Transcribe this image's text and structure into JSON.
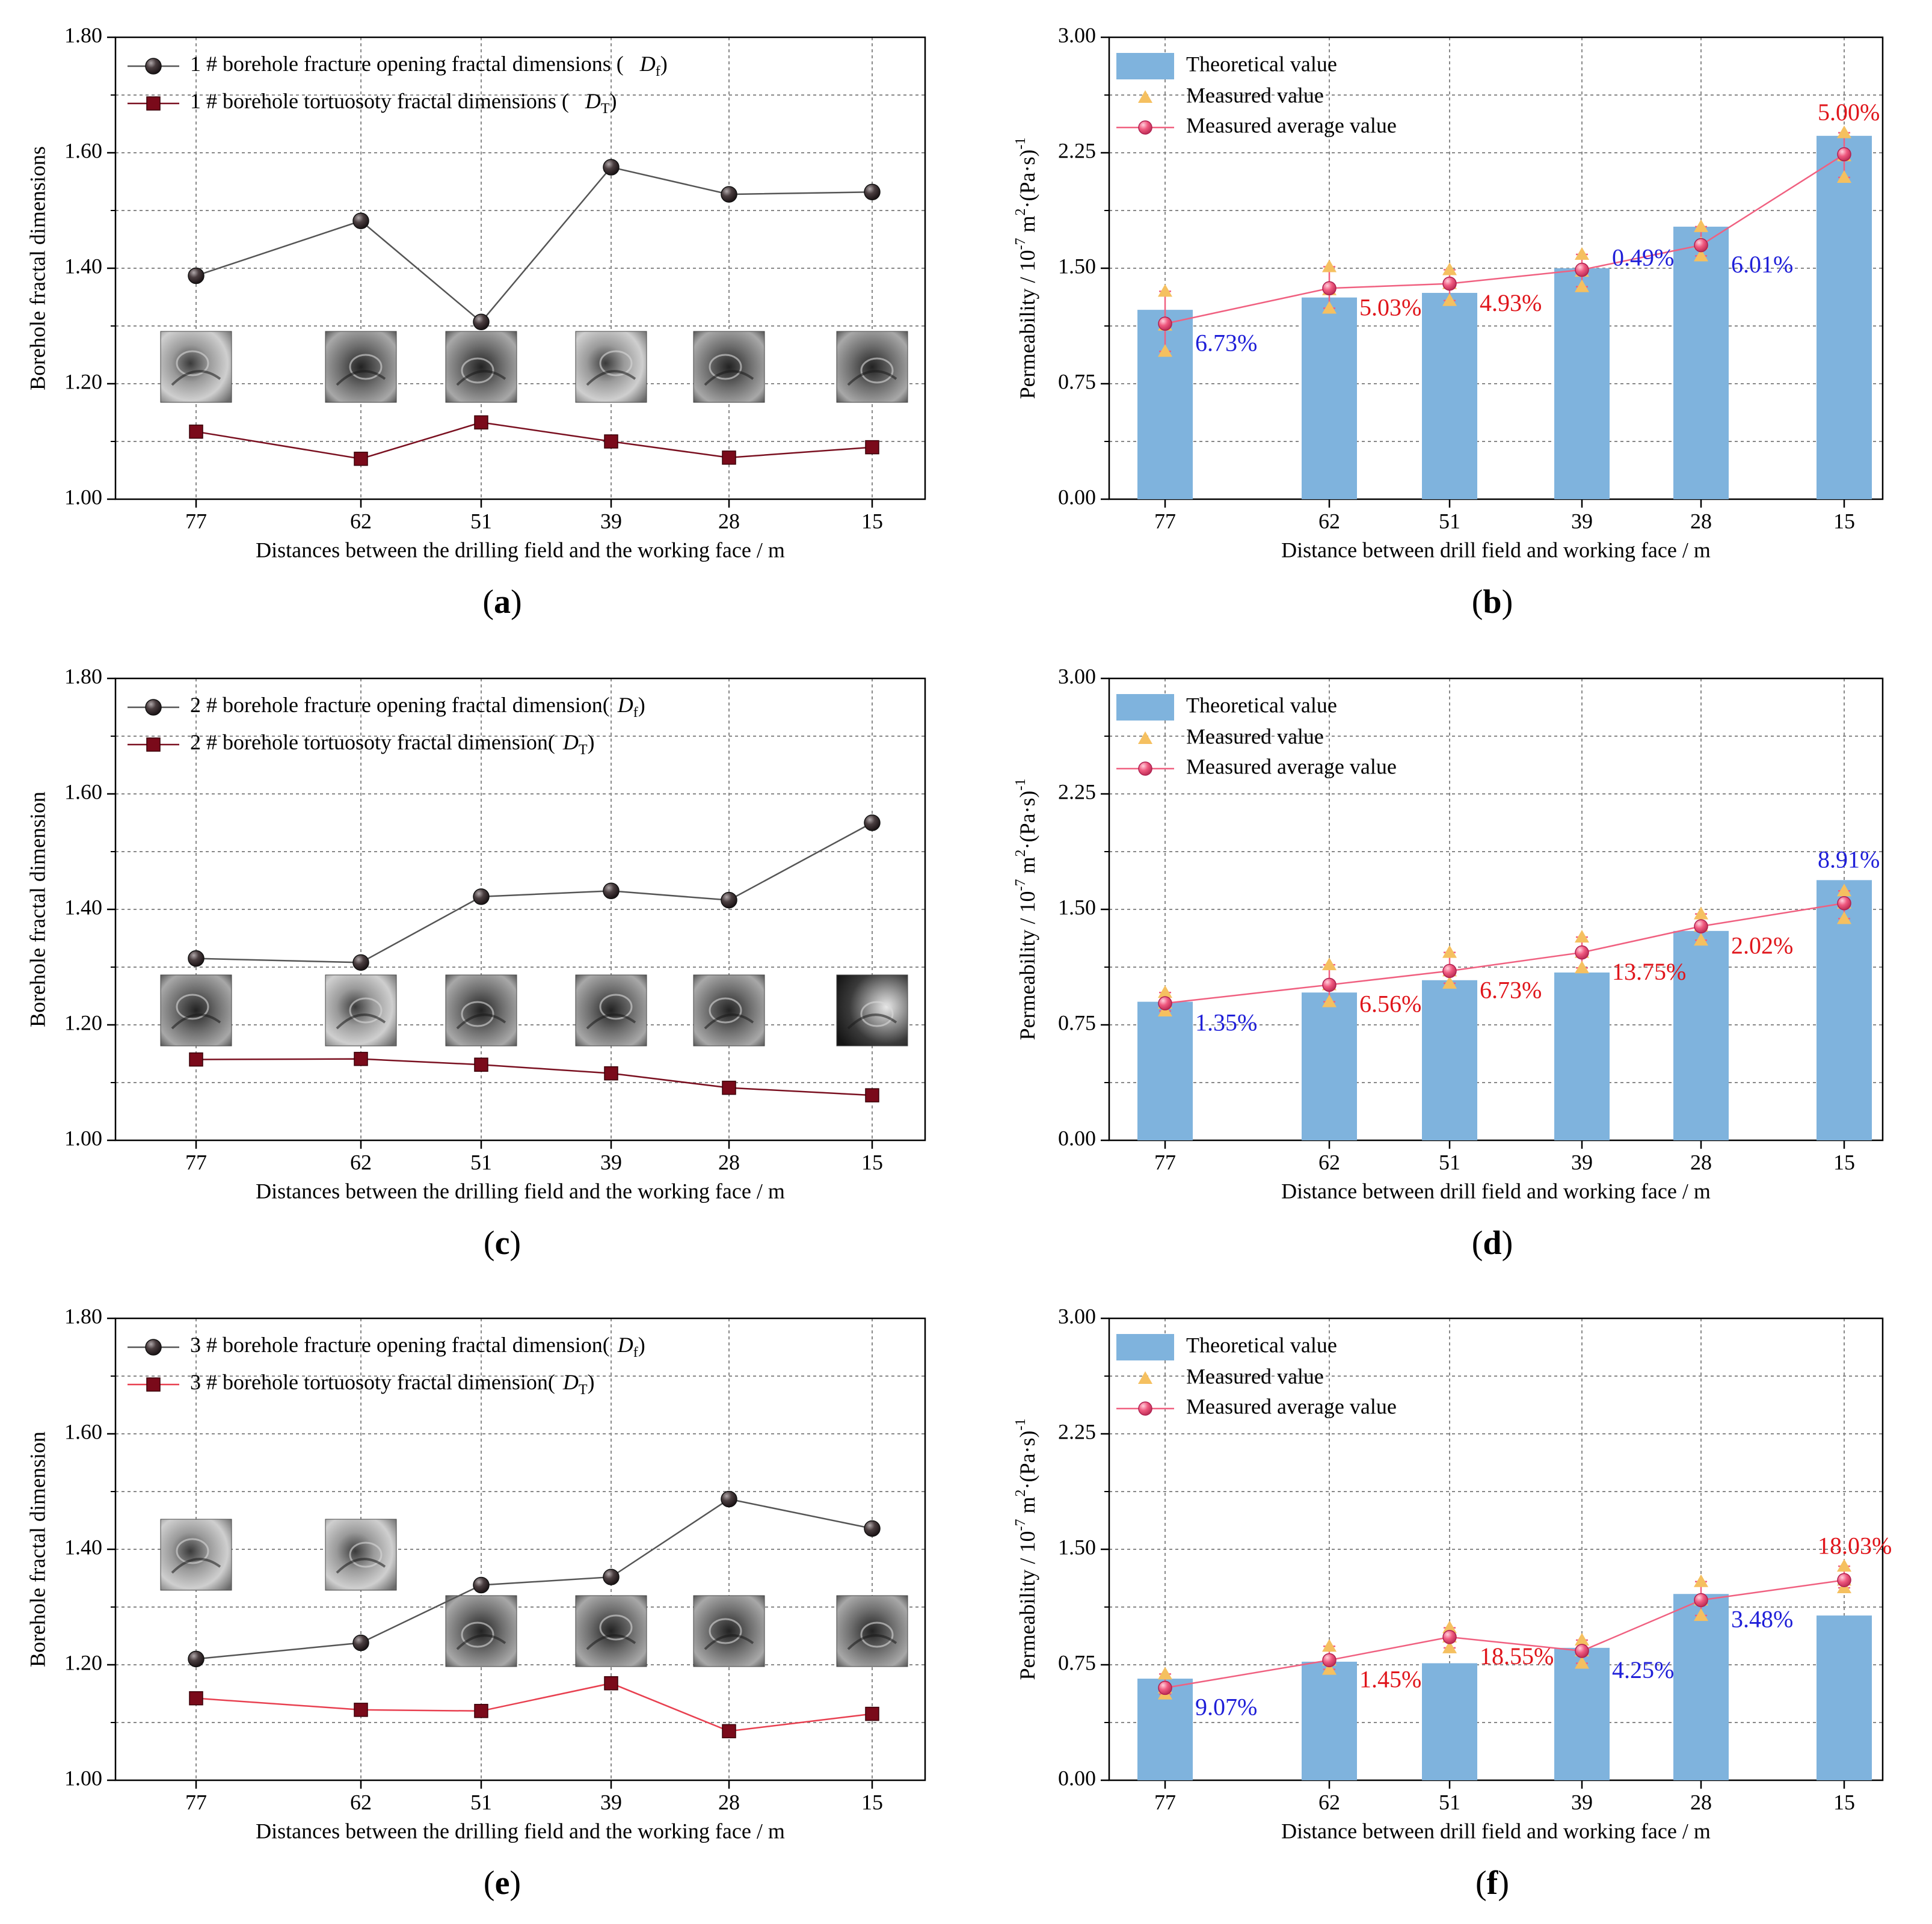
{
  "colors": {
    "fractal_line": "#555555",
    "fractal_marker": "#3a2e30",
    "tort_line": "#7a1020",
    "tort_line_light": "#e84050",
    "tort_marker": "#7a0a1a",
    "bar": "#7fb3dd",
    "measured": "#f5c060",
    "average": "#f06080",
    "average_marker": "#e8507a",
    "label_blue": "#1f1fd8",
    "label_red": "#e0151b",
    "grid": "#888888"
  },
  "chart_data": [
    {
      "id": "a",
      "type": "line",
      "panel_label": "(a)",
      "panel_letter": "a",
      "xlabel": "Distances between the drilling field and the working face / m",
      "ylabel": "Borehole fractal dimensions",
      "categories": [
        "77",
        "62",
        "51",
        "39",
        "28",
        "15"
      ],
      "x": [
        77,
        62,
        51,
        39,
        28,
        15
      ],
      "ylim": [
        1.0,
        1.8
      ],
      "yticks": [
        "1.00",
        "1.20",
        "1.40",
        "1.60",
        "1.80"
      ],
      "series": [
        {
          "name": "1 # borehole fracture opening fractal dimensions (",
          "symbol": "D",
          "sub": "f",
          "close": ")",
          "marker": "circle",
          "values": [
            1.387,
            1.482,
            1.307,
            1.575,
            1.528,
            1.532
          ]
        },
        {
          "name": "1 # borehole tortuosoty fractal dimensions (",
          "symbol": "D",
          "sub": "T",
          "close": ")",
          "marker": "square",
          "values": [
            1.117,
            1.07,
            1.133,
            1.1,
            1.072,
            1.09
          ]
        }
      ],
      "photos": [
        {
          "label": "77",
          "tone": "light"
        },
        {
          "label": "62",
          "tone": "mid"
        },
        {
          "label": "51",
          "tone": "mid"
        },
        {
          "label": "39",
          "tone": "light"
        },
        {
          "label": "28",
          "tone": "mid"
        },
        {
          "label": "15",
          "tone": "mid"
        }
      ]
    },
    {
      "id": "b",
      "type": "bar",
      "panel_label": "(b)",
      "panel_letter": "b",
      "xlabel": "Distance between drill field and working face / m",
      "ylabel_parts": [
        "Permeability / 10",
        "-7",
        " m",
        "2",
        "·(Pa·s)",
        "-1"
      ],
      "categories": [
        "77",
        "62",
        "51",
        "39",
        "28",
        "15"
      ],
      "x": [
        77,
        62,
        51,
        39,
        28,
        15
      ],
      "ylim": [
        0.0,
        3.0
      ],
      "yticks": [
        "0.00",
        "0.75",
        "1.50",
        "2.25",
        "3.00"
      ],
      "legend": [
        "Theoretical value",
        "Measured value",
        "Measured average value"
      ],
      "theoretical": [
        1.23,
        1.31,
        1.34,
        1.5,
        1.77,
        2.36
      ],
      "measured": [
        [
          1.35,
          1.13,
          0.96
        ],
        [
          1.51,
          1.36,
          1.24
        ],
        [
          1.49,
          1.4,
          1.29
        ],
        [
          1.59,
          1.48,
          1.38
        ],
        [
          1.77,
          1.66,
          1.58
        ],
        [
          2.38,
          2.23,
          2.09
        ]
      ],
      "average": [
        1.14,
        1.37,
        1.4,
        1.49,
        1.65,
        2.24
      ],
      "labels": [
        {
          "text": "6.73%",
          "color": "blue",
          "pos": "right-low"
        },
        {
          "text": "5.03%",
          "color": "red",
          "pos": "right-low"
        },
        {
          "text": "4.93%",
          "color": "red",
          "pos": "right-low"
        },
        {
          "text": "0.49%",
          "color": "blue",
          "pos": "right-high"
        },
        {
          "text": "6.01%",
          "color": "blue",
          "pos": "right-low"
        },
        {
          "text": "5.00%",
          "color": "red",
          "pos": "above"
        }
      ]
    },
    {
      "id": "c",
      "type": "line",
      "panel_label": "(c)",
      "panel_letter": "c",
      "xlabel": "Distances between the drilling field and the working face / m",
      "ylabel": "Borehole fractal dimension",
      "categories": [
        "77",
        "62",
        "51",
        "39",
        "28",
        "15"
      ],
      "x": [
        77,
        62,
        51,
        39,
        28,
        15
      ],
      "ylim": [
        1.0,
        1.8
      ],
      "yticks": [
        "1.00",
        "1.20",
        "1.40",
        "1.60",
        "1.80"
      ],
      "series": [
        {
          "name": "2 # borehole fracture opening fractal dimension(",
          "symbol": "D",
          "sub": "f",
          "close": ")",
          "marker": "circle",
          "values": [
            1.315,
            1.308,
            1.422,
            1.432,
            1.416,
            1.55
          ]
        },
        {
          "name": "2 # borehole tortuosoty fractal dimension(",
          "symbol": "D",
          "sub": "T",
          "close": ")",
          "marker": "square",
          "values": [
            1.14,
            1.141,
            1.131,
            1.116,
            1.091,
            1.078
          ]
        }
      ],
      "photos": [
        {
          "label": "77",
          "tone": "mid"
        },
        {
          "label": "62",
          "tone": "light"
        },
        {
          "label": "51",
          "tone": "mid"
        },
        {
          "label": "39",
          "tone": "mid"
        },
        {
          "label": "28",
          "tone": "mid"
        },
        {
          "label": "15",
          "tone": "dark"
        }
      ]
    },
    {
      "id": "d",
      "type": "bar",
      "panel_label": "(d)",
      "panel_letter": "d",
      "xlabel": "Distance between drill field and working face / m",
      "ylabel_parts": [
        "Permeability / 10",
        "-7",
        " m",
        "2",
        "·(Pa·s)",
        "-1"
      ],
      "categories": [
        "77",
        "62",
        "51",
        "39",
        "28",
        "15"
      ],
      "x": [
        77,
        62,
        51,
        39,
        28,
        15
      ],
      "ylim": [
        0.0,
        3.0
      ],
      "yticks": [
        "0.00",
        "0.75",
        "1.50",
        "2.25",
        "3.00"
      ],
      "legend": [
        "Theoretical value",
        "Measured value",
        "Measured average value"
      ],
      "theoretical": [
        0.9,
        0.96,
        1.04,
        1.09,
        1.36,
        1.69
      ],
      "measured": [
        [
          0.96,
          0.89,
          0.84
        ],
        [
          1.14,
          1.01,
          0.9
        ],
        [
          1.22,
          1.1,
          1.02
        ],
        [
          1.32,
          1.22,
          1.12
        ],
        [
          1.47,
          1.39,
          1.3
        ],
        [
          1.62,
          1.54,
          1.44
        ]
      ],
      "average": [
        0.89,
        1.01,
        1.1,
        1.22,
        1.39,
        1.54
      ],
      "labels": [
        {
          "text": "1.35%",
          "color": "blue",
          "pos": "right-low"
        },
        {
          "text": "6.56%",
          "color": "red",
          "pos": "right-low"
        },
        {
          "text": "6.73%",
          "color": "red",
          "pos": "right-low"
        },
        {
          "text": "13.75%",
          "color": "red",
          "pos": "right-low"
        },
        {
          "text": "2.02%",
          "color": "red",
          "pos": "right-low"
        },
        {
          "text": "8.91%",
          "color": "blue",
          "pos": "above"
        }
      ]
    },
    {
      "id": "e",
      "type": "line",
      "panel_label": "(e)",
      "panel_letter": "e",
      "xlabel": "Distances between the drilling field and the working face / m",
      "ylabel": "Borehole fractal dimension",
      "categories": [
        "77",
        "62",
        "51",
        "39",
        "28",
        "15"
      ],
      "x": [
        77,
        62,
        51,
        39,
        28,
        15
      ],
      "ylim": [
        1.0,
        1.8
      ],
      "yticks": [
        "1.00",
        "1.20",
        "1.40",
        "1.60",
        "1.80"
      ],
      "series": [
        {
          "name": "3 # borehole fracture opening fractal dimension(",
          "symbol": "D",
          "sub": "f",
          "close": ")",
          "marker": "circle",
          "values": [
            1.21,
            1.238,
            1.338,
            1.352,
            1.487,
            1.436
          ]
        },
        {
          "name": "3 # borehole tortuosoty fractal dimension(",
          "symbol": "D",
          "sub": "T",
          "close": ")",
          "marker": "square",
          "values": [
            1.142,
            1.122,
            1.12,
            1.168,
            1.085,
            1.115
          ]
        }
      ],
      "photos": [
        {
          "label": "77",
          "tone": "light"
        },
        {
          "label": "62",
          "tone": "light"
        },
        {
          "label": "51",
          "tone": "mid"
        },
        {
          "label": "39",
          "tone": "mid"
        },
        {
          "label": "28",
          "tone": "mid"
        },
        {
          "label": "15",
          "tone": "mid"
        }
      ]
    },
    {
      "id": "f",
      "type": "bar",
      "panel_label": "(f)",
      "panel_letter": "f",
      "xlabel": "Distance between drill field and working face / m",
      "ylabel_parts": [
        "Permeability / 10",
        "-7",
        " m",
        "2",
        "·(Pa·s)",
        "-1"
      ],
      "categories": [
        "77",
        "62",
        "51",
        "39",
        "28",
        "15"
      ],
      "x": [
        77,
        62,
        51,
        39,
        28,
        15
      ],
      "ylim": [
        0.0,
        3.0
      ],
      "yticks": [
        "0.00",
        "0.75",
        "1.50",
        "2.25",
        "3.00"
      ],
      "legend": [
        "Theoretical value",
        "Measured value",
        "Measured average value"
      ],
      "theoretical": [
        0.66,
        0.77,
        0.76,
        0.86,
        1.21,
        1.07
      ],
      "measured": [
        [
          0.69,
          0.6,
          0.56
        ],
        [
          0.87,
          0.78,
          0.72
        ],
        [
          0.99,
          0.93,
          0.86
        ],
        [
          0.91,
          0.84,
          0.76
        ],
        [
          1.29,
          1.17,
          1.07
        ],
        [
          1.39,
          1.3,
          1.25
        ]
      ],
      "average": [
        0.6,
        0.78,
        0.93,
        0.84,
        1.17,
        1.3
      ],
      "labels": [
        {
          "text": "9.07%",
          "color": "blue",
          "pos": "right-low"
        },
        {
          "text": "1.45%",
          "color": "red",
          "pos": "right-low"
        },
        {
          "text": "18.55%",
          "color": "red",
          "pos": "right-low"
        },
        {
          "text": "4.25%",
          "color": "blue",
          "pos": "right-low"
        },
        {
          "text": "3.48%",
          "color": "blue",
          "pos": "right-low"
        },
        {
          "text": "18.03%",
          "color": "red",
          "pos": "above"
        }
      ]
    }
  ]
}
